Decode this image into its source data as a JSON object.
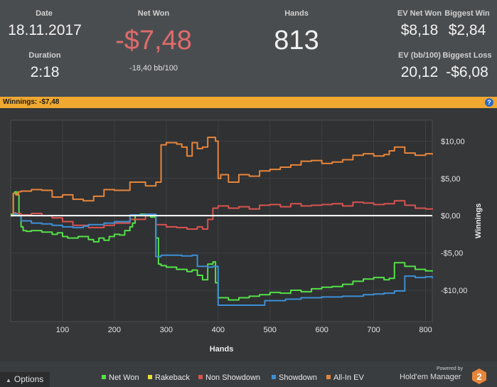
{
  "stats": {
    "date_label": "Date",
    "date_value": "18.11.2017",
    "duration_label": "Duration",
    "duration_value": "2:18",
    "net_won_label": "Net Won",
    "net_won_value": "-$7,48",
    "bb_per_100": "-18,40 bb/100",
    "hands_label": "Hands",
    "hands_value": "813",
    "ev_net_won_label": "EV Net Won",
    "ev_net_won_value": "$8,18",
    "biggest_win_label": "Biggest Win",
    "biggest_win_value": "$2,84",
    "ev_bb100_label": "EV (bb/100)",
    "ev_bb100_value": "20,12",
    "biggest_loss_label": "Biggest Loss",
    "biggest_loss_value": "-$6,08"
  },
  "winnings_bar": {
    "label": "Winnings:",
    "value": "-$7,48",
    "help_icon": "?",
    "color": "#f0a830"
  },
  "footer": {
    "options_label": "Options",
    "powered_by": "Powered by",
    "brand": "Hold'em Manager",
    "brand_badge": "2"
  },
  "chart_data": {
    "type": "line",
    "xlabel": "Hands",
    "ylabel": "Winnings",
    "xlim": [
      0,
      813
    ],
    "ylim": [
      -14.2,
      12.8
    ],
    "x_ticks": [
      100,
      200,
      300,
      400,
      500,
      600,
      700,
      800
    ],
    "y_ticks": [
      10,
      5,
      0,
      -5,
      -10
    ],
    "x_tick_labels": [
      "100",
      "200",
      "300",
      "400",
      "500",
      "600",
      "700",
      "800"
    ],
    "y_tick_labels": [
      "$10,00",
      "$5,00",
      "$0,00",
      "-$5,00",
      "-$10,00"
    ],
    "grid": true,
    "legend_position": "bottom",
    "series": [
      {
        "name": "Net Won",
        "color": "#55e048",
        "x": [
          0,
          5,
          8,
          12,
          16,
          20,
          24,
          30,
          40,
          60,
          80,
          90,
          100,
          110,
          130,
          150,
          160,
          170,
          180,
          190,
          200,
          210,
          220,
          230,
          235,
          240,
          250,
          260,
          270,
          280,
          285,
          290,
          300,
          320,
          340,
          350,
          360,
          370,
          380,
          390,
          395,
          400,
          420,
          440,
          460,
          480,
          500,
          520,
          540,
          560,
          580,
          600,
          620,
          640,
          660,
          680,
          700,
          720,
          730,
          740,
          760,
          780,
          800,
          813
        ],
        "values": [
          0.2,
          3.0,
          3.2,
          2.8,
          0.0,
          -1.5,
          -2.0,
          -2.1,
          -2.0,
          -2.2,
          -2.5,
          -2.3,
          -2.8,
          -3.0,
          -2.8,
          -3.2,
          -3.5,
          -3.0,
          -3.3,
          -2.8,
          -2.5,
          -2.6,
          -2.0,
          -1.5,
          -1.0,
          0.1,
          0.2,
          0.0,
          -0.2,
          -3.0,
          -6.5,
          -6.7,
          -6.9,
          -7.2,
          -7.5,
          -7.3,
          -8.0,
          -8.6,
          -6.5,
          -6.2,
          -9.0,
          -11.0,
          -11.3,
          -11.0,
          -10.8,
          -10.6,
          -10.3,
          -10.4,
          -10.0,
          -10.2,
          -9.8,
          -9.6,
          -9.5,
          -9.2,
          -8.8,
          -8.5,
          -8.3,
          -8.6,
          -8.4,
          -6.3,
          -6.8,
          -7.2,
          -7.4,
          -7.48
        ]
      },
      {
        "name": "Rakeback",
        "color": "#e8e03a",
        "x": [],
        "values": []
      },
      {
        "name": "Non Showdown",
        "color": "#d9534f",
        "x": [
          0,
          5,
          10,
          20,
          40,
          60,
          80,
          100,
          120,
          150,
          180,
          200,
          230,
          260,
          280,
          300,
          320,
          340,
          360,
          370,
          380,
          390,
          400,
          420,
          440,
          460,
          480,
          500,
          520,
          540,
          560,
          580,
          600,
          620,
          640,
          660,
          680,
          700,
          720,
          740,
          760,
          780,
          800,
          813
        ],
        "values": [
          0.0,
          0.4,
          0.3,
          0.1,
          0.3,
          0.0,
          -0.3,
          -0.8,
          -1.3,
          -1.6,
          -1.3,
          -1.0,
          -0.5,
          0.2,
          -1.2,
          -1.5,
          -1.6,
          -1.8,
          -1.5,
          -1.8,
          -0.5,
          1.0,
          1.3,
          1.0,
          1.2,
          0.9,
          1.4,
          1.5,
          1.2,
          1.6,
          1.3,
          1.4,
          1.5,
          1.6,
          1.3,
          1.8,
          1.7,
          1.5,
          1.6,
          2.0,
          1.4,
          1.0,
          0.9,
          1.0
        ]
      },
      {
        "name": "Showdown",
        "color": "#3d8fd6",
        "x": [
          0,
          8,
          10,
          12,
          20,
          40,
          60,
          80,
          100,
          120,
          140,
          150,
          180,
          200,
          230,
          260,
          280,
          290,
          300,
          330,
          350,
          360,
          380,
          390,
          400,
          420,
          440,
          460,
          480,
          490,
          520,
          530,
          560,
          600,
          640,
          680,
          700,
          720,
          740,
          760,
          780,
          800,
          813
        ],
        "values": [
          0.0,
          0.3,
          0.2,
          0.0,
          -0.7,
          -1.0,
          -1.1,
          -1.3,
          -1.5,
          -1.6,
          -1.4,
          -1.2,
          -1.0,
          -0.8,
          0.1,
          0.2,
          -5.5,
          -5.3,
          -5.3,
          -5.4,
          -5.3,
          -6.8,
          -6.9,
          -6.8,
          -12.0,
          -12.0,
          -12.0,
          -12.0,
          -12.0,
          -11.4,
          -11.4,
          -11.2,
          -11.0,
          -10.9,
          -10.8,
          -10.6,
          -10.5,
          -10.4,
          -10.1,
          -8.1,
          -8.3,
          -8.2,
          -8.4
        ]
      },
      {
        "name": "All-In EV",
        "color": "#e8853a",
        "x": [
          0,
          5,
          10,
          15,
          20,
          40,
          60,
          80,
          100,
          120,
          140,
          160,
          180,
          200,
          230,
          260,
          280,
          290,
          300,
          320,
          330,
          340,
          350,
          360,
          370,
          380,
          395,
          400,
          405,
          420,
          440,
          460,
          480,
          500,
          520,
          540,
          560,
          580,
          600,
          620,
          640,
          660,
          680,
          700,
          720,
          730,
          740,
          760,
          780,
          800,
          813
        ],
        "values": [
          0.0,
          3.0,
          2.8,
          3.2,
          3.3,
          3.5,
          3.4,
          2.5,
          2.8,
          2.2,
          2.0,
          2.6,
          3.5,
          3.4,
          4.5,
          4.0,
          4.5,
          9.5,
          9.8,
          9.6,
          9.2,
          8.0,
          9.8,
          9.0,
          9.2,
          10.5,
          10.0,
          5.0,
          5.5,
          4.5,
          5.5,
          5.3,
          6.0,
          6.2,
          6.5,
          6.8,
          7.3,
          7.4,
          7.0,
          7.2,
          7.5,
          8.1,
          8.3,
          8.0,
          8.2,
          8.7,
          9.2,
          8.4,
          8.1,
          8.3,
          8.18
        ]
      }
    ]
  }
}
